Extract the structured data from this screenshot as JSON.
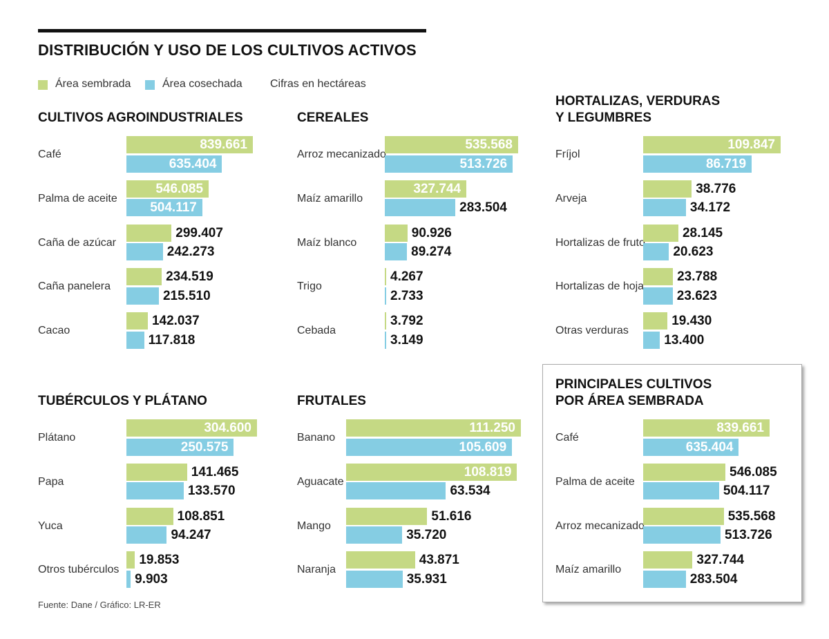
{
  "title": "DISTRIBUCIÓN Y USO DE LOS CULTIVOS ACTIVOS",
  "legend": {
    "sembrada": "Área sembrada",
    "cosechada": "Área cosechada",
    "units": "Cifras en hectáreas"
  },
  "colors": {
    "sembrada": "#c5d984",
    "cosechada": "#85cde3"
  },
  "source": "Fuente: Dane / Gráfico: LR-ER",
  "chart_data": [
    {
      "type": "bar",
      "title": "CULTIVOS AGROINDUSTRIALES",
      "categories": [
        "Café",
        "Palma de aceite",
        "Caña de azúcar",
        "Caña panelera",
        "Cacao"
      ],
      "series": [
        {
          "name": "Área sembrada",
          "values": [
            839661,
            546085,
            299407,
            234519,
            142037
          ],
          "labels": [
            "839.661",
            "546.085",
            "299.407",
            "234.519",
            "142.037"
          ]
        },
        {
          "name": "Área cosechada",
          "values": [
            635404,
            504117,
            242273,
            215510,
            117818
          ],
          "labels": [
            "635.404",
            "504.117",
            "242.273",
            "215.510",
            "117.818"
          ]
        }
      ]
    },
    {
      "type": "bar",
      "title": "CEREALES",
      "categories": [
        "Arroz mecanizado",
        "Maíz amarillo",
        "Maíz blanco",
        "Trigo",
        "Cebada"
      ],
      "series": [
        {
          "name": "Área sembrada",
          "values": [
            535568,
            327744,
            90926,
            4267,
            3792
          ],
          "labels": [
            "535.568",
            "327.744",
            "90.926",
            "4.267",
            "3.792"
          ]
        },
        {
          "name": "Área cosechada",
          "values": [
            513726,
            283504,
            89274,
            2733,
            3149
          ],
          "labels": [
            "513.726",
            "283.504",
            "89.274",
            "2.733",
            "3.149"
          ]
        }
      ]
    },
    {
      "type": "bar",
      "title": "HORTALIZAS, VERDURAS\nY LEGUMBRES",
      "categories": [
        "Fríjol",
        "Arveja",
        "Hortalizas de fruto",
        "Hortalizas de hoja",
        "Otras verduras"
      ],
      "series": [
        {
          "name": "Área sembrada",
          "values": [
            109847,
            38776,
            28145,
            23788,
            19430
          ],
          "labels": [
            "109.847",
            "38.776",
            "28.145",
            "23.788",
            "19.430"
          ]
        },
        {
          "name": "Área cosechada",
          "values": [
            86719,
            34172,
            20623,
            23623,
            13400
          ],
          "labels": [
            "86.719",
            "34.172",
            "20.623",
            "23.623",
            "13.400"
          ]
        }
      ]
    },
    {
      "type": "bar",
      "title": "TUBÉRCULOS Y PLÁTANO",
      "categories": [
        "Plátano",
        "Papa",
        "Yuca",
        "Otros tubérculos"
      ],
      "series": [
        {
          "name": "Área sembrada",
          "values": [
            304600,
            141465,
            108851,
            19853
          ],
          "labels": [
            "304.600",
            "141.465",
            "108.851",
            "19.853"
          ]
        },
        {
          "name": "Área cosechada",
          "values": [
            250575,
            133570,
            94247,
            9903
          ],
          "labels": [
            "250.575",
            "133.570",
            "94.247",
            "9.903"
          ]
        }
      ]
    },
    {
      "type": "bar",
      "title": "FRUTALES",
      "categories": [
        "Banano",
        "Aguacate",
        "Mango",
        "Naranja"
      ],
      "series": [
        {
          "name": "Área sembrada",
          "values": [
            111250,
            108819,
            51616,
            43871
          ],
          "labels": [
            "111.250",
            "108.819",
            "51.616",
            "43.871"
          ]
        },
        {
          "name": "Área cosechada",
          "values": [
            105609,
            63534,
            35720,
            35931
          ],
          "labels": [
            "105.609",
            "63.534",
            "35.720",
            "35.931"
          ]
        }
      ]
    },
    {
      "type": "bar",
      "title": "PRINCIPALES CULTIVOS\nPOR ÁREA SEMBRADA",
      "categories": [
        "Café",
        "Palma de aceite",
        "Arroz mecanizado",
        "Maíz amarillo"
      ],
      "series": [
        {
          "name": "Área sembrada",
          "values": [
            839661,
            546085,
            535568,
            327744
          ],
          "labels": [
            "839.661",
            "546.085",
            "535.568",
            "327.744"
          ]
        },
        {
          "name": "Área cosechada",
          "values": [
            635404,
            504117,
            513726,
            283504
          ],
          "labels": [
            "635.404",
            "504.117",
            "513.726",
            "283.504"
          ]
        }
      ]
    }
  ]
}
